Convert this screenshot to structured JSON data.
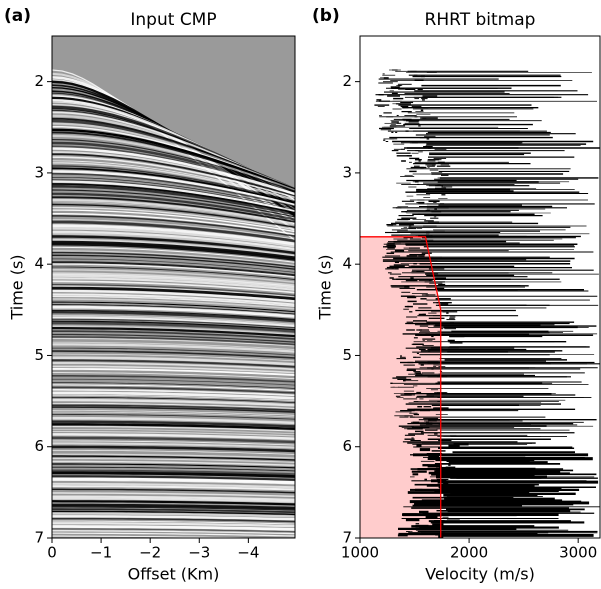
{
  "chart_data": [
    {
      "type": "image",
      "panel_label": "(a)",
      "title": "Input CMP",
      "xlabel": "Offset (Km)",
      "ylabel": "Time (s)",
      "xlim": [
        0,
        -4.95
      ],
      "xticks": [
        0,
        {
          "value": -1,
          "label": "−1"
        },
        {
          "value": -2,
          "label": "−2"
        },
        {
          "value": -3,
          "label": "−3"
        },
        {
          "value": -4,
          "label": "−4"
        }
      ],
      "ylim": [
        1.5,
        7
      ],
      "yticks": [
        2,
        3,
        4,
        5,
        6,
        7
      ],
      "y_inverted": true
    },
    {
      "type": "bitmap",
      "panel_label": "(b)",
      "title": "RHRT bitmap",
      "xlabel": "Velocity (m/s)",
      "ylabel": "Time (s)",
      "xlim": [
        1000,
        3200
      ],
      "xticks": [
        1000,
        2000,
        3000
      ],
      "ylim": [
        1.5,
        7
      ],
      "yticks": [
        2,
        3,
        4,
        5,
        6,
        7
      ],
      "y_inverted": true,
      "region": {
        "color": "#ff0000",
        "x": [
          1000,
          1600,
          1740,
          1740,
          1000
        ],
        "y": [
          3.7,
          3.7,
          4.5,
          7,
          7
        ]
      }
    }
  ]
}
